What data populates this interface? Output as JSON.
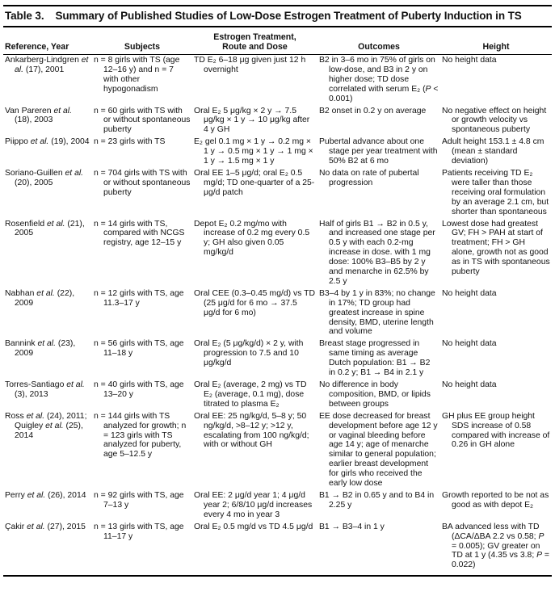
{
  "table": {
    "number": "Table 3.",
    "title": "Summary of Published Studies of Low-Dose Estrogen Treatment of Puberty Induction in TS",
    "headers": [
      "Reference, Year",
      "Subjects",
      "Estrogen Treatment, Route and Dose",
      "Outcomes",
      "Height"
    ],
    "rows": [
      [
        "Ankarberg-Lindgren et al. (17), 2001",
        "n = 8 girls with TS (age 12–16 y) and n = 7 with other hypogonadism",
        "TD E₂ 6–18 μg given just 12 h overnight",
        "B2 in 3–6 mo in 75% of girls on low-dose, and B3 in 2 y on higher dose; TD dose correlated with serum E₂ (P < 0.001)",
        "No height data"
      ],
      [
        "Van Pareren et al. (18), 2003",
        "n = 60 girls with TS with or without spontaneous puberty",
        "Oral E₂ 5 μg/kg × 2 y → 7.5 μg/kg × 1 y → 10 μg/kg after 4 y GH",
        "B2 onset in 0.2 y on average",
        "No negative effect on height or growth velocity vs spontaneous puberty"
      ],
      [
        "Piippo et al. (19), 2004",
        "n = 23 girls with TS",
        "E₂ gel 0.1 mg × 1 y → 0.2 mg × 1 y → 0.5 mg × 1 y → 1 mg × 1 y → 1.5 mg × 1 y",
        "Pubertal advance about one stage per year treatment with 50% B2 at 6 mo",
        "Adult height 153.1 ± 4.8 cm (mean ± standard deviation)"
      ],
      [
        "Soriano-Guillen et al. (20), 2005",
        "n = 704 girls with TS with or without spontaneous puberty",
        "Oral EE 1–5 μg/d; oral E₂ 0.5 mg/d; TD one-quarter of a 25-μg/d patch",
        "No data on rate of pubertal progression",
        "Patients receiving TD E₂ were taller than those receiving oral formulation by an average 2.1 cm, but shorter than spontaneous"
      ],
      [
        "Rosenfield et al. (21), 2005",
        "n = 14 girls with TS, compared with NCGS registry, age 12–15 y",
        "Depot E₂ 0.2 mg/mo with increase of 0.2 mg every 0.5 y; GH also given 0.05 mg/kg/d",
        "Half of girls B1 → B2 in 0.5 y, and increased one stage per 0.5 y with each 0.2-mg increase in dose. with 1 mg dose: 100% B3–B5 by 2 y and menarche in 62.5% by 2.5 y",
        "Lowest dose had greatest GV; FH > PAH at start of treatment; FH > GH alone, growth not as good as in TS with spontaneous puberty"
      ],
      [
        "Nabhan et al. (22), 2009",
        "n = 12 girls with TS, age 11.3–17 y",
        "Oral CEE (0.3–0.45 mg/d) vs TD (25 μg/d for 6 mo → 37.5 μg/d for 6 mo)",
        "B3–4 by 1 y in 83%; no change in 17%; TD group had greatest increase in spine density, BMD, uterine length and volume",
        "No height data"
      ],
      [
        "Bannink et al. (23), 2009",
        "n = 56 girls with TS, age 11–18 y",
        "Oral E₂ (5 μg/kg/d) × 2 y, with progression to 7.5 and 10 μg/kg/d",
        "Breast stage progressed in same timing as average Dutch population: B1 → B2 in 0.2 y; B1 → B4 in 2.1 y",
        "No height data"
      ],
      [
        "Torres-Santiago et al. (3), 2013",
        "n = 40 girls with TS, age 13–20 y",
        "Oral E₂ (average, 2 mg) vs TD E₂ (average, 0.1 mg), dose titrated to plasma E₂",
        "No difference in body composition, BMD, or lipids between groups",
        "No height data"
      ],
      [
        "Ross et al. (24), 2011; Quigley et al. (25), 2014",
        "n = 144 girls with TS analyzed for growth; n = 123 girls with TS analyzed for puberty, age 5–12.5 y",
        "Oral EE: 25 ng/kg/d, 5–8 y; 50 ng/kg/d, >8–12 y; >12 y, escalating from 100 ng/kg/d; with or without GH",
        "EE dose decreased for breast development before age 12 y or vaginal bleeding before age 14 y; age of menarche similar to general population; earlier breast development for girls who received the early low dose",
        "GH plus EE group height SDS increase of 0.58 compared with increase of 0.26 in GH alone"
      ],
      [
        "Perry et al. (26), 2014",
        "n = 92 girls with TS, age 7–13 y",
        "Oral EE: 2 μg/d year 1; 4 μg/d year 2; 6/8/10 μg/d increases every 4 mo in year 3",
        "B1 → B2 in 0.65 y and to B4 in 2.25 y",
        "Growth reported to be not as good as with depot E₂"
      ],
      [
        "Çakir et al. (27), 2015",
        "n = 13 girls with TS, age 11–17 y",
        "Oral E₂ 0.5 mg/d vs TD 4.5 μg/d",
        "B1 → B3–4 in 1 y",
        "BA advanced less with TD (ΔCA/ΔBA 2.2 vs 0.58; P = 0.005); GV greater on TD at 1 y (4.35 vs 3.8; P = 0.022)"
      ]
    ]
  }
}
